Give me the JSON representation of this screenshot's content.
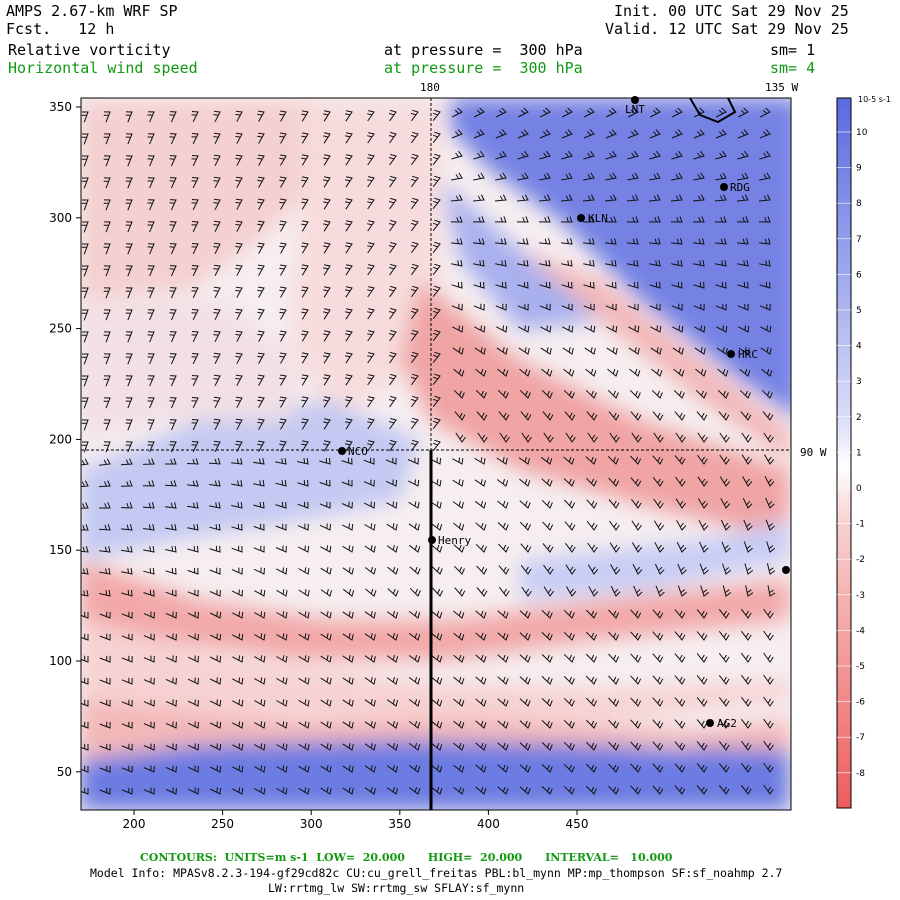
{
  "header": {
    "model": "AMPS 2.67-km WRF SP",
    "forecast": "Fcst.   12 h",
    "init": "Init. 00 UTC Sat 29 Nov 25",
    "valid": "Valid. 12 UTC Sat 29 Nov 25"
  },
  "fields": [
    {
      "name": "Relative vorticity",
      "level": "at pressure =  300 hPa",
      "sm": "sm= 1",
      "color": "#000000"
    },
    {
      "name": "Horizontal wind speed",
      "level": "at pressure =  300 hPa",
      "sm": "sm= 4",
      "color": "#119911"
    }
  ],
  "map": {
    "lon_top_left": "180",
    "lon_top_right": "135 W",
    "lon_right": "90 W",
    "stations": [
      {
        "name": "LNT"
      },
      {
        "name": "RDG"
      },
      {
        "name": "KLN"
      },
      {
        "name": "HRC"
      },
      {
        "name": "NCO"
      },
      {
        "name": "Henry"
      },
      {
        "name": "AG2"
      }
    ]
  },
  "axes": {
    "x_ticks": [
      "200",
      "250",
      "300",
      "350",
      "400",
      "450"
    ],
    "y_ticks": [
      "350",
      "300",
      "250",
      "200",
      "150",
      "100",
      "50"
    ]
  },
  "colorbar": {
    "units": "10-5 s-1",
    "labels": [
      "10",
      "9",
      "8",
      "7",
      "6",
      "5",
      "4",
      "3",
      "2",
      "1",
      "0",
      "-1",
      "-2",
      "-3",
      "-4",
      "-5",
      "-6",
      "-7",
      "-8"
    ],
    "positive_color": "#5566dd",
    "negative_color": "#ee5555"
  },
  "footer": {
    "contours": "CONTOURS:  UNITS=m s-1  LOW=  20.000      HIGH=  20.000      INTERVAL=   10.000",
    "model_info": "Model Info: MPASv8.2.3-194-gf29cd82c CU:cu_grell_freitas PBL:bl_mynn MP:mp_thompson SF:sf_noahmp 2.7",
    "model_info2": "LW:rrtmg_lw SW:rrtmg_sw SFLAY:sf_mynn"
  }
}
